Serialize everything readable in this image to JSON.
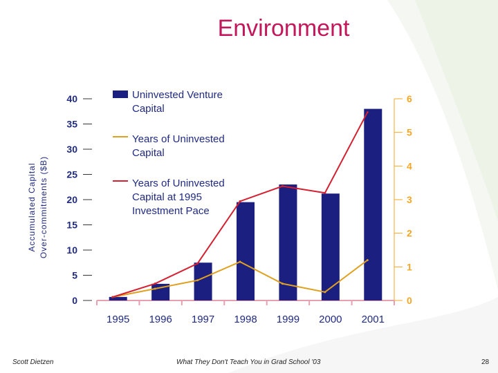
{
  "slide": {
    "title": "Environment",
    "footer_left": "Scott Dietzen",
    "footer_center": "What They Don't Teach You in Grad School '03",
    "page_number": "28"
  },
  "colors": {
    "title": "#c2185b",
    "bar": "#1a1f80",
    "line_years": "#e0a020",
    "line_pace": "#d42030",
    "right_axis": "#f5a623",
    "left_axis": "#1f2a80"
  },
  "chart_data": {
    "type": "bar",
    "title": "",
    "categories": [
      "1995",
      "1996",
      "1997",
      "1998",
      "1999",
      "2000",
      "2001"
    ],
    "ylabel": [
      "Accumulated Capital",
      "Over-commitments ($B)"
    ],
    "ylim": [
      0,
      40
    ],
    "yticks": [
      "0",
      "5",
      "10",
      "15",
      "20",
      "25",
      "30",
      "35",
      "40"
    ],
    "y2lim": [
      0,
      6
    ],
    "y2ticks": [
      "0",
      "1",
      "2",
      "3",
      "4",
      "5",
      "6"
    ],
    "series": [
      {
        "name": [
          "Uninvested Venture",
          "Capital"
        ],
        "type": "bar",
        "axis": "left",
        "values": [
          0.7,
          3.3,
          7.5,
          19.5,
          23.0,
          21.2,
          38.0
        ]
      },
      {
        "name": [
          "Years of Uninvested",
          "Capital"
        ],
        "type": "line",
        "axis": "right",
        "values": [
          0.1,
          0.35,
          0.6,
          1.15,
          0.5,
          0.25,
          1.2
        ]
      },
      {
        "name": [
          "Years of Uninvested",
          "Capital at 1995",
          "Investment Pace"
        ],
        "type": "line",
        "axis": "right",
        "values": [
          0.1,
          0.5,
          1.1,
          2.95,
          3.4,
          3.2,
          5.6
        ]
      }
    ]
  }
}
